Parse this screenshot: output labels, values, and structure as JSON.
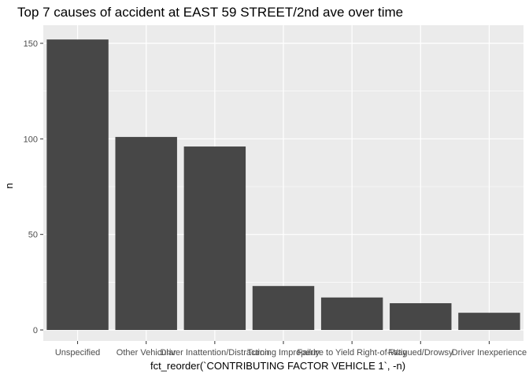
{
  "chart_data": {
    "type": "bar",
    "title": "Top 7 causes of accident at EAST 59 STREET/2nd ave over time",
    "xlabel": "fct_reorder(`CONTRIBUTING FACTOR VEHICLE 1`, -n)",
    "ylabel": "n",
    "categories": [
      "Unspecified",
      "Other Vehicular",
      "Driver Inattention/Distraction",
      "Turning Improperly",
      "Failure to Yield Right-of-Way",
      "Fatigued/Drowsy",
      "Driver Inexperience"
    ],
    "values": [
      152,
      101,
      96,
      23,
      17,
      14,
      9
    ],
    "ylim": [
      0,
      160
    ],
    "yticks": [
      0,
      50,
      100,
      150
    ],
    "grid": true,
    "colors": {
      "panel_background": "#ebebeb",
      "grid_major": "#ffffff",
      "bar_fill": "#474747"
    }
  }
}
